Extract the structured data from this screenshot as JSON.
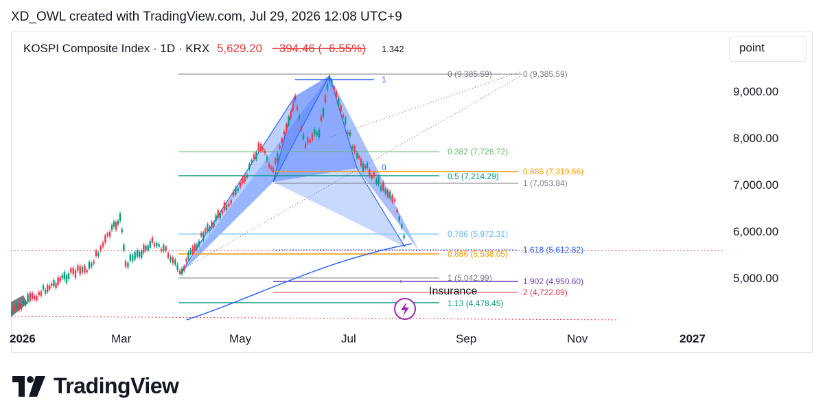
{
  "header": {
    "attribution": "XD_OWL created with TradingView.com, Jul 29, 2026 12:08 UTC+9"
  },
  "symbol": {
    "name": "KOSPI Composite Index · 1D · KRX",
    "price": "5,629.20",
    "change": "−394.46 (−6.55%)",
    "overlay_tag": "1.342"
  },
  "scale_button": "point",
  "y_axis": [
    "9,000.00",
    "8,000.00",
    "7,000.00",
    "6,000.00",
    "5,000.00"
  ],
  "x_axis": [
    "2026",
    "Mar",
    "May",
    "Jul",
    "Sep",
    "Nov",
    "2027"
  ],
  "fib_labels": {
    "top_left": "0 (9,385.59)",
    "top_right": "0 (9,385.59)",
    "one": "1",
    "f382": "0.382 (7,726.72)",
    "f886a": "0.886 (7,319.66)",
    "zero": "0",
    "f05": "0.5 (7,214.29)",
    "f1a": "1 (7,053.84)",
    "f786": "0.786 (5,972.31)",
    "f1618": "1.618 (5,612.82)",
    "f886b": "0.886 (5,538.05)",
    "f1b": "1 (5,042.99)",
    "f1902": "1.902 (4,950.60)",
    "f2": "2 (4,722.09)",
    "f113": "1.13 (4,478.45)"
  },
  "insurance_label": "Insurance",
  "brand": "TradingView",
  "colors": {
    "up": "#089981",
    "down": "#f23645",
    "pattern": "#2962ff",
    "accent_purple": "#9c27b0"
  }
}
